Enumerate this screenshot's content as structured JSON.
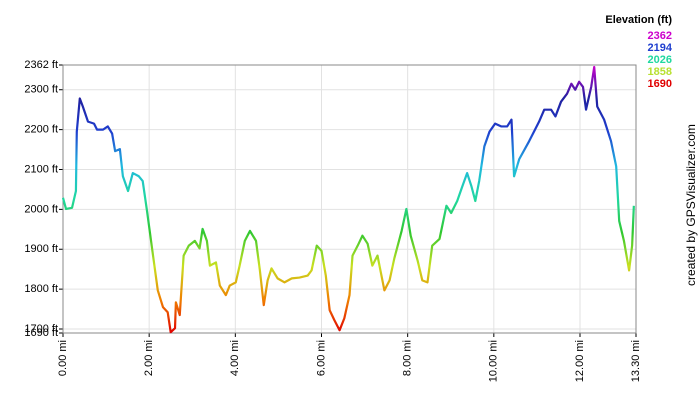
{
  "chart_data": {
    "type": "line",
    "title": "Elevation (ft)",
    "credit": "created by GPSVisualizer.com",
    "xlim": [
      0,
      13.3
    ],
    "ylim": [
      1690,
      2362
    ],
    "xticks": [
      {
        "value": 0,
        "label": "0.00 mi"
      },
      {
        "value": 2,
        "label": "2.00 mi"
      },
      {
        "value": 4,
        "label": "4.00 mi"
      },
      {
        "value": 6,
        "label": "6.00 mi"
      },
      {
        "value": 8,
        "label": "8.00 mi"
      },
      {
        "value": 10,
        "label": "10.00 mi"
      },
      {
        "value": 12,
        "label": "12.00 mi"
      },
      {
        "value": 13.3,
        "label": "13.30 mi"
      }
    ],
    "yticks": [
      {
        "value": 2362,
        "label": "2362 ft"
      },
      {
        "value": 2300,
        "label": "2300 ft"
      },
      {
        "value": 2200,
        "label": "2200 ft"
      },
      {
        "value": 2100,
        "label": "2100 ft"
      },
      {
        "value": 2000,
        "label": "2000 ft"
      },
      {
        "value": 1900,
        "label": "1900 ft"
      },
      {
        "value": 1800,
        "label": "1800 ft"
      },
      {
        "value": 1700,
        "label": "1700 ft"
      },
      {
        "value": 1690,
        "label": "1690 ft"
      }
    ],
    "grid": true,
    "color_scale": [
      {
        "value": 2362,
        "color": "#cc00cc"
      },
      {
        "value": 2194,
        "color": "#1f3fcf"
      },
      {
        "value": 2026,
        "color": "#20d8a0"
      },
      {
        "value": 1858,
        "color": "#b8e030"
      },
      {
        "value": 1690,
        "color": "#e00000"
      }
    ],
    "line_colors": [
      "#e00000",
      "#f08000",
      "#c8e020",
      "#30c830",
      "#20d8a0",
      "#20b8e0",
      "#1f3fcf",
      "#2020a0",
      "#cc00cc"
    ],
    "x": [
      0,
      0.07,
      0.21,
      0.3,
      0.32,
      0.39,
      0.46,
      0.58,
      0.72,
      0.79,
      0.93,
      1.04,
      1.14,
      1.21,
      1.32,
      1.39,
      1.51,
      1.62,
      1.76,
      1.85,
      1.95,
      2.09,
      2.2,
      2.32,
      2.43,
      2.5,
      2.6,
      2.62,
      2.71,
      2.8,
      2.92,
      3.06,
      3.17,
      3.24,
      3.34,
      3.41,
      3.55,
      3.64,
      3.78,
      3.87,
      4.01,
      4.1,
      4.22,
      4.34,
      4.48,
      4.57,
      4.66,
      4.75,
      4.84,
      4.98,
      5.14,
      5.31,
      5.49,
      5.68,
      5.77,
      5.89,
      6.0,
      6.1,
      6.19,
      6.3,
      6.42,
      6.53,
      6.65,
      6.72,
      6.84,
      6.95,
      7.07,
      7.18,
      7.3,
      7.46,
      7.58,
      7.69,
      7.86,
      7.97,
      8.07,
      8.23,
      8.34,
      8.46,
      8.57,
      8.74,
      8.9,
      9.01,
      9.15,
      9.27,
      9.38,
      9.48,
      9.57,
      9.66,
      9.78,
      9.9,
      10.03,
      10.17,
      10.31,
      10.41,
      10.47,
      10.59,
      10.82,
      11.05,
      11.17,
      11.33,
      11.43,
      11.56,
      11.7,
      11.8,
      11.89,
      11.98,
      12.07,
      12.14,
      12.26,
      12.33,
      12.4,
      12.56,
      12.72,
      12.84,
      12.91,
      13.02,
      13.14,
      13.21,
      13.25
    ],
    "series": [
      {
        "name": "Elevation",
        "values": [
          2029,
          2001,
          2004,
          2046,
          2195,
          2278,
          2258,
          2220,
          2215,
          2200,
          2200,
          2208,
          2190,
          2146,
          2151,
          2083,
          2046,
          2091,
          2083,
          2071,
          1996,
          1884,
          1797,
          1755,
          1742,
          1692,
          1702,
          1767,
          1735,
          1884,
          1909,
          1921,
          1902,
          1951,
          1921,
          1859,
          1867,
          1809,
          1785,
          1809,
          1817,
          1859,
          1921,
          1946,
          1921,
          1847,
          1760,
          1822,
          1852,
          1827,
          1817,
          1827,
          1829,
          1834,
          1847,
          1909,
          1896,
          1834,
          1747,
          1722,
          1697,
          1727,
          1785,
          1884,
          1909,
          1934,
          1914,
          1859,
          1884,
          1797,
          1822,
          1877,
          1946,
          2001,
          1934,
          1872,
          1822,
          1817,
          1909,
          1926,
          2009,
          1991,
          2021,
          2058,
          2091,
          2058,
          2021,
          2071,
          2158,
          2195,
          2215,
          2208,
          2208,
          2225,
          2083,
          2126,
          2171,
          2220,
          2250,
          2250,
          2233,
          2270,
          2290,
          2315,
          2300,
          2320,
          2307,
          2250,
          2307,
          2357,
          2258,
          2225,
          2171,
          2108,
          1971,
          1921,
          1847,
          1909,
          2009
        ]
      }
    ]
  }
}
